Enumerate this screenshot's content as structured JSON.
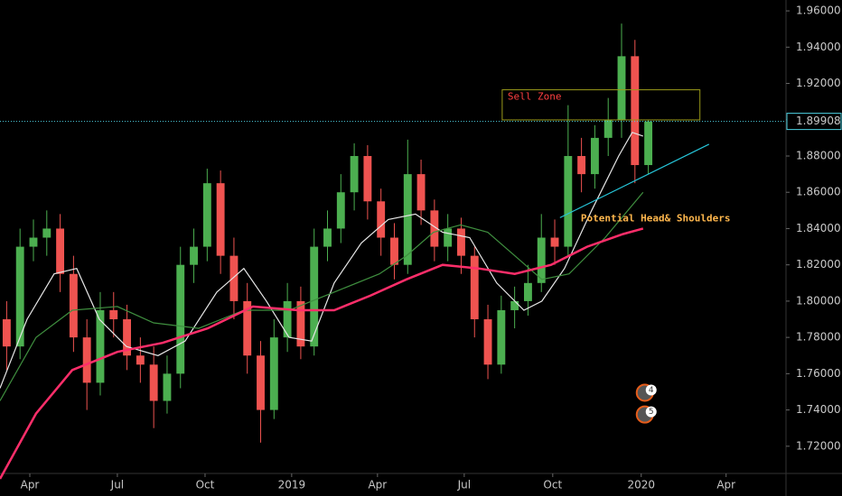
{
  "chart_data": {
    "type": "candlestick",
    "x": [
      0.5,
      1.5,
      2.5,
      3.5,
      4.5,
      5.5,
      6.5,
      7.5,
      8.5,
      9.5,
      10.5,
      11.5,
      12.5,
      13.5,
      14.5,
      15.5,
      16.5,
      17.5,
      18.5,
      19.5,
      20.5,
      21.5,
      22.5,
      23.5,
      24.5,
      25.5,
      26.5,
      27.5,
      28.5,
      29.5,
      30.5,
      31.5,
      32.5,
      33.5,
      34.5,
      35.5,
      36.5,
      37.5,
      38.5,
      39.5,
      40.5,
      41.5,
      42.5,
      43.5,
      44.5,
      45.5,
      46.5,
      47.5,
      48.5
    ],
    "open": [
      1.79,
      1.775,
      1.83,
      1.835,
      1.84,
      1.815,
      1.78,
      1.755,
      1.795,
      1.79,
      1.77,
      1.765,
      1.745,
      1.76,
      1.82,
      1.83,
      1.865,
      1.825,
      1.8,
      1.77,
      1.74,
      1.78,
      1.8,
      1.775,
      1.83,
      1.84,
      1.86,
      1.88,
      1.855,
      1.835,
      1.82,
      1.87,
      1.85,
      1.83,
      1.84,
      1.825,
      1.79,
      1.765,
      1.795,
      1.8,
      1.81,
      1.835,
      1.83,
      1.88,
      1.87,
      1.89,
      1.9,
      1.935,
      1.875
    ],
    "high": [
      1.8,
      1.84,
      1.845,
      1.85,
      1.848,
      1.825,
      1.79,
      1.805,
      1.805,
      1.798,
      1.78,
      1.775,
      1.77,
      1.83,
      1.84,
      1.873,
      1.872,
      1.835,
      1.81,
      1.778,
      1.79,
      1.81,
      1.808,
      1.84,
      1.85,
      1.87,
      1.887,
      1.886,
      1.862,
      1.843,
      1.889,
      1.878,
      1.856,
      1.848,
      1.846,
      1.83,
      1.798,
      1.803,
      1.808,
      1.82,
      1.848,
      1.845,
      1.908,
      1.89,
      1.897,
      1.912,
      1.953,
      1.944,
      1.9
    ],
    "low": [
      1.762,
      1.768,
      1.822,
      1.825,
      1.805,
      1.772,
      1.74,
      1.748,
      1.78,
      1.762,
      1.755,
      1.73,
      1.738,
      1.752,
      1.81,
      1.822,
      1.815,
      1.79,
      1.76,
      1.722,
      1.735,
      1.772,
      1.768,
      1.77,
      1.822,
      1.832,
      1.85,
      1.845,
      1.825,
      1.812,
      1.815,
      1.842,
      1.822,
      1.822,
      1.815,
      1.78,
      1.757,
      1.76,
      1.785,
      1.792,
      1.805,
      1.82,
      1.825,
      1.86,
      1.862,
      1.88,
      1.89,
      1.865,
      1.87
    ],
    "close": [
      1.775,
      1.83,
      1.835,
      1.84,
      1.815,
      1.78,
      1.755,
      1.795,
      1.79,
      1.77,
      1.765,
      1.745,
      1.76,
      1.82,
      1.83,
      1.865,
      1.825,
      1.8,
      1.77,
      1.74,
      1.78,
      1.8,
      1.775,
      1.83,
      1.84,
      1.86,
      1.88,
      1.855,
      1.835,
      1.82,
      1.87,
      1.85,
      1.83,
      1.84,
      1.825,
      1.79,
      1.765,
      1.795,
      1.8,
      1.81,
      1.835,
      1.83,
      1.88,
      1.87,
      1.89,
      1.9,
      1.935,
      1.875,
      1.89908
    ],
    "up_color": "#4caf50",
    "down_color": "#ef5350",
    "series": [
      {
        "color": "#e6e6e6",
        "width": 1.2,
        "x": [
          0,
          2.03,
          4.05,
          5.74,
          7.43,
          9.46,
          11.82,
          13.85,
          16.22,
          18.24,
          19.93,
          21.62,
          23.31,
          25,
          27.03,
          29.05,
          31.08,
          33.11,
          35.14,
          37.16,
          39.19,
          40.54,
          42.23,
          44.26,
          46.28,
          47.3,
          48.11
        ],
        "values": [
          1.752,
          1.79,
          1.815,
          1.818,
          1.79,
          1.775,
          1.77,
          1.778,
          1.805,
          1.818,
          1.8,
          1.78,
          1.778,
          1.81,
          1.832,
          1.845,
          1.848,
          1.838,
          1.835,
          1.81,
          1.795,
          1.8,
          1.818,
          1.85,
          1.88,
          1.893,
          1.891
        ]
      },
      {
        "color": "#3f8f3f",
        "width": 1.2,
        "x": [
          0,
          2.7,
          5.41,
          8.78,
          11.49,
          14.86,
          18.24,
          21.62,
          25,
          28.38,
          30.41,
          32.43,
          34.46,
          36.49,
          38.51,
          40.54,
          42.57,
          45.27,
          48.11
        ],
        "values": [
          1.745,
          1.78,
          1.795,
          1.797,
          1.788,
          1.785,
          1.795,
          1.795,
          1.805,
          1.815,
          1.825,
          1.838,
          1.842,
          1.838,
          1.825,
          1.812,
          1.815,
          1.835,
          1.86
        ]
      },
      {
        "color": "#ff2e6a",
        "width": 2.5,
        "x": [
          0,
          2.7,
          5.41,
          8.78,
          12.16,
          15.54,
          18.92,
          22.3,
          25,
          27.7,
          30.41,
          33.11,
          35.81,
          38.51,
          41.22,
          43.92,
          46.62,
          48.11
        ],
        "values": [
          1.702,
          1.738,
          1.762,
          1.772,
          1.777,
          1.785,
          1.797,
          1.795,
          1.795,
          1.803,
          1.812,
          1.82,
          1.818,
          1.815,
          1.82,
          1.83,
          1.837,
          1.84
        ]
      }
    ],
    "xlim": [
      0,
      58.8
    ],
    "xticks": [
      {
        "value": 2.23,
        "label": "Apr"
      },
      {
        "value": 8.78,
        "label": "Jul"
      },
      {
        "value": 15.34,
        "label": "Oct"
      },
      {
        "value": 21.82,
        "label": "2019"
      },
      {
        "value": 28.24,
        "label": "Apr"
      },
      {
        "value": 34.73,
        "label": "Jul"
      },
      {
        "value": 41.35,
        "label": "Oct"
      },
      {
        "value": 47.97,
        "label": "2020"
      },
      {
        "value": 54.32,
        "label": "Apr"
      }
    ],
    "ylim": [
      1.705,
      1.966
    ],
    "yticks": [
      {
        "value": 1.72,
        "label": "1.72000"
      },
      {
        "value": 1.74,
        "label": "1.74000"
      },
      {
        "value": 1.76,
        "label": "1.76000"
      },
      {
        "value": 1.78,
        "label": "1.78000"
      },
      {
        "value": 1.8,
        "label": "1.80000"
      },
      {
        "value": 1.82,
        "label": "1.82000"
      },
      {
        "value": 1.84,
        "label": "1.84000"
      },
      {
        "value": 1.86,
        "label": "1.86000"
      },
      {
        "value": 1.88,
        "label": "1.88000"
      },
      {
        "value": 1.9,
        "label": "1.90000"
      },
      {
        "value": 1.92,
        "label": "1.92000"
      },
      {
        "value": 1.94,
        "label": "1.94000"
      },
      {
        "value": 1.96,
        "label": "1.96000"
      }
    ],
    "last_price": {
      "value": 1.89908,
      "label": "1.89908",
      "color": "#4dd0e1"
    },
    "sell_zone": {
      "label": "Sell Zone",
      "xlim": [
        37.57,
        52.36
      ],
      "ylim": [
        1.8999,
        1.9165
      ],
      "color": "#9a9a1a",
      "label_color": "#ff4040"
    },
    "trendline": {
      "x": [
        41.89,
        53.04
      ],
      "y": [
        1.846,
        1.8865
      ],
      "color": "#26c6da"
    },
    "annotation": {
      "text": "Potential Head& Shoulders",
      "x": 43.45,
      "y": 1.8455,
      "color": "#ffb74d"
    },
    "events": [
      {
        "label": "4",
        "x": 48.24,
        "y": 1.7495
      },
      {
        "label": "5",
        "x": 48.24,
        "y": 1.7375
      }
    ]
  }
}
